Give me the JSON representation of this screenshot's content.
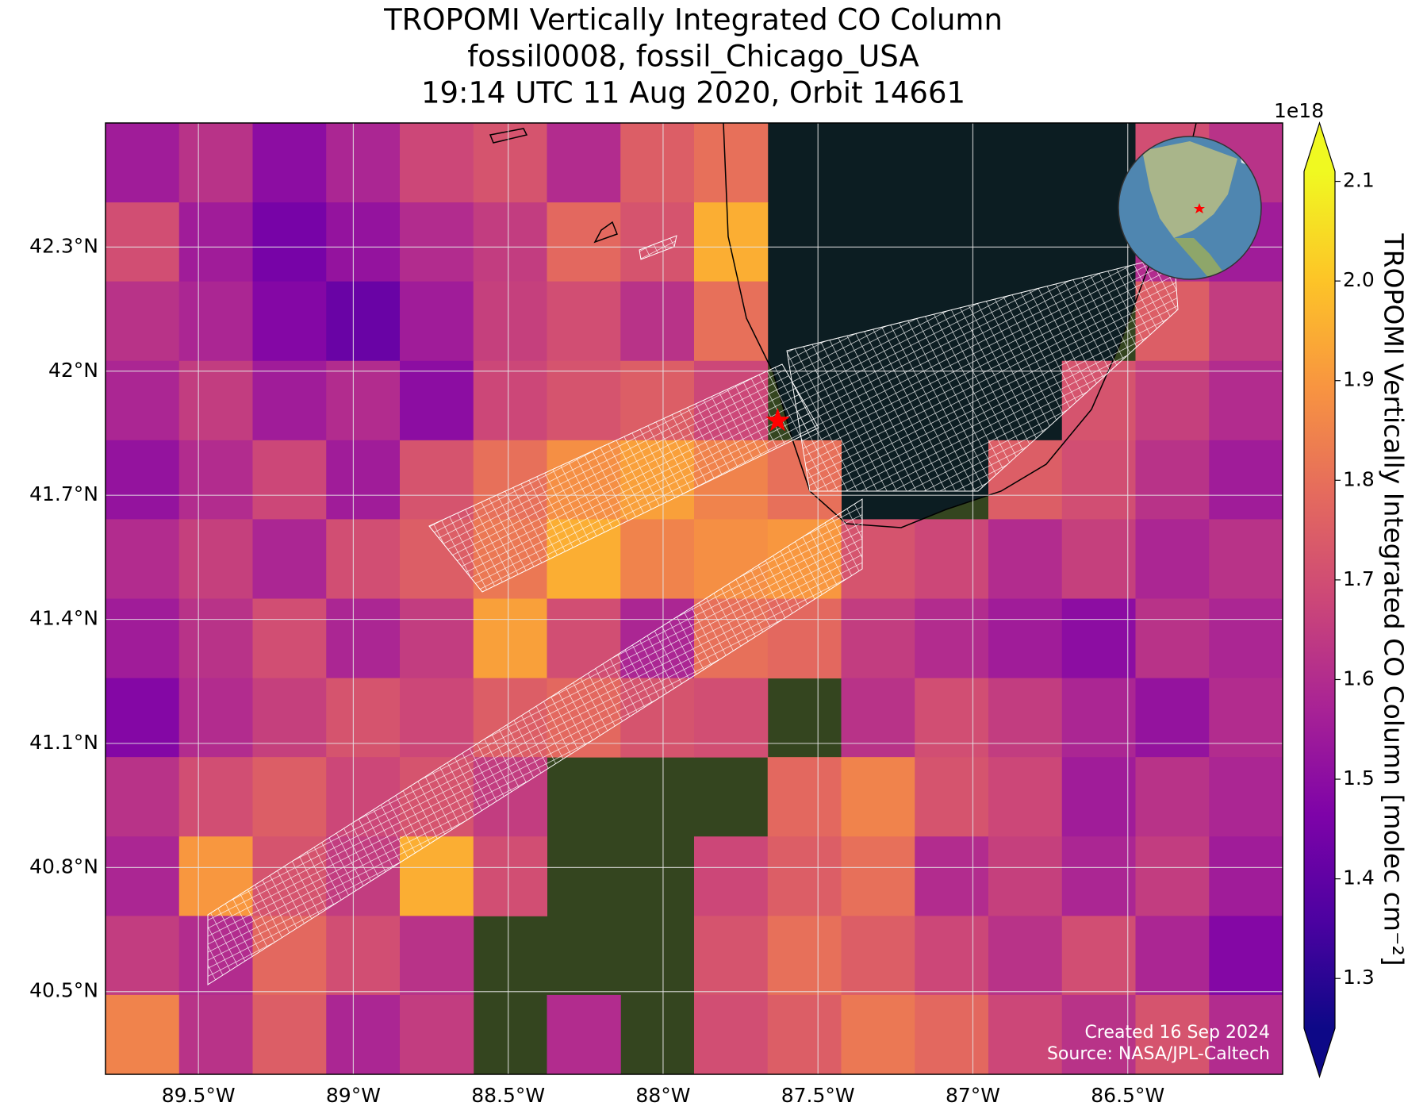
{
  "chart_data": {
    "type": "map",
    "title": "TROPOMI Vertically Integrated CO Column",
    "subtitle": [
      "fossil0008, fossil_Chicago_USA",
      "19:14 UTC 11 Aug 2020, Orbit 14661"
    ],
    "xlim": [
      -89.8,
      -86.0
    ],
    "ylim": [
      40.3,
      42.6
    ],
    "xticks": [
      {
        "value": -89.5,
        "label": "89.5°W"
      },
      {
        "value": -89,
        "label": "89°W"
      },
      {
        "value": -88.5,
        "label": "88.5°W"
      },
      {
        "value": -88,
        "label": "88°W"
      },
      {
        "value": -87.5,
        "label": "87.5°W"
      },
      {
        "value": -87,
        "label": "87°W"
      },
      {
        "value": -86.5,
        "label": "86.5°W"
      }
    ],
    "yticks": [
      {
        "value": 42.3,
        "label": "42.3°N"
      },
      {
        "value": 42,
        "label": "42°N"
      },
      {
        "value": 41.7,
        "label": "41.7°N"
      },
      {
        "value": 41.4,
        "label": "41.4°N"
      },
      {
        "value": 41.1,
        "label": "41.1°N"
      },
      {
        "value": 40.8,
        "label": "40.8°N"
      },
      {
        "value": 40.5,
        "label": "40.5°N"
      }
    ],
    "grid": true,
    "colormap": "plasma",
    "colorbar": {
      "label": "TROPOMI Vertically Integrated CO Column [molec cm⁻²]",
      "offset_label": "1e18",
      "clim": [
        1.25,
        2.11
      ],
      "ticks": [
        1.3,
        1.4,
        1.5,
        1.6,
        1.7,
        1.8,
        1.9,
        {
          "value": 2,
          "label": "2.0"
        },
        2.1
      ],
      "extend": "both"
    },
    "target": {
      "lon": -87.63,
      "lat": 41.88,
      "color": "#ff0000"
    },
    "grid_cells": {
      "lon_edges": [
        -89.8,
        -89.5625,
        -89.325,
        -89.0875,
        -88.85,
        -88.6125,
        -88.375,
        -88.1375,
        -87.9,
        -87.6625,
        -87.425,
        -87.1875,
        -86.95,
        -86.7125,
        -86.475,
        -86.2375,
        -86.0
      ],
      "lat_edges": [
        42.6,
        42.408,
        42.217,
        42.025,
        41.833,
        41.642,
        41.45,
        41.258,
        41.067,
        40.875,
        40.683,
        40.492,
        40.3
      ],
      "values": [
        [
          1.55,
          1.62,
          1.5,
          1.58,
          1.68,
          1.72,
          1.6,
          1.75,
          1.8,
          null,
          null,
          null,
          null,
          null,
          1.7,
          1.62
        ],
        [
          1.7,
          1.55,
          1.45,
          1.52,
          1.6,
          1.65,
          1.78,
          1.72,
          1.95,
          null,
          null,
          null,
          null,
          null,
          1.6,
          1.55
        ],
        [
          1.62,
          1.58,
          1.48,
          1.42,
          1.55,
          1.66,
          1.7,
          1.62,
          1.8,
          null,
          null,
          null,
          null,
          null,
          1.75,
          1.65
        ],
        [
          1.58,
          1.65,
          1.55,
          1.6,
          1.5,
          1.68,
          1.72,
          1.75,
          1.68,
          null,
          null,
          null,
          null,
          1.72,
          1.66,
          1.6
        ],
        [
          1.52,
          1.6,
          1.68,
          1.55,
          1.72,
          1.8,
          1.88,
          1.92,
          1.85,
          1.8,
          null,
          null,
          1.75,
          1.7,
          1.62,
          1.55
        ],
        [
          1.6,
          1.66,
          1.58,
          1.7,
          1.75,
          1.82,
          1.95,
          1.85,
          1.88,
          1.9,
          1.72,
          1.68,
          1.6,
          1.66,
          1.58,
          1.62
        ],
        [
          1.55,
          1.62,
          1.7,
          1.58,
          1.65,
          1.92,
          1.7,
          1.58,
          1.8,
          1.78,
          1.65,
          1.6,
          1.55,
          1.5,
          1.62,
          1.58
        ],
        [
          1.48,
          1.6,
          1.66,
          1.72,
          1.68,
          1.75,
          1.78,
          1.72,
          1.7,
          null,
          1.62,
          1.7,
          1.65,
          1.58,
          1.52,
          1.6
        ],
        [
          1.62,
          1.7,
          1.75,
          1.68,
          1.72,
          1.65,
          null,
          null,
          null,
          1.78,
          1.85,
          1.72,
          1.68,
          1.55,
          1.62,
          1.58
        ],
        [
          1.58,
          1.9,
          1.72,
          1.65,
          1.95,
          1.7,
          null,
          null,
          1.68,
          1.75,
          1.8,
          1.6,
          1.66,
          1.58,
          1.65,
          1.55
        ],
        [
          1.65,
          1.6,
          1.78,
          1.7,
          1.62,
          null,
          null,
          null,
          1.72,
          1.8,
          1.75,
          1.68,
          1.62,
          1.7,
          1.58,
          1.48
        ],
        [
          1.85,
          1.62,
          1.75,
          1.58,
          1.65,
          null,
          1.6,
          null,
          1.7,
          1.75,
          1.82,
          1.78,
          1.68,
          1.62,
          1.72,
          1.6
        ]
      ]
    },
    "annotations": [
      "Created 16 Sep 2024",
      "Source: NASA/JPL-Caltech"
    ]
  }
}
